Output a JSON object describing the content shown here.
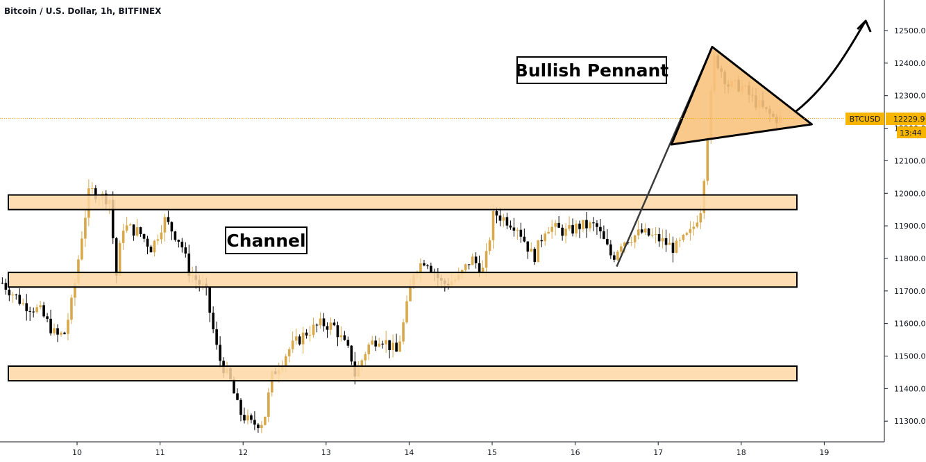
{
  "chart_data": {
    "type": "candlestick",
    "title": "Bitcoin / U.S. Dollar, 1h, BITFINEX",
    "ticker": "BTCUSD",
    "last_price": "12229.9",
    "countdown": "13:44",
    "ylim": [
      11240,
      12560
    ],
    "xlim": [
      9.1,
      19.55
    ],
    "y_ticks": [
      "11300.0",
      "11400.0",
      "11500.0",
      "11600.0",
      "11700.0",
      "11800.0",
      "11900.0",
      "12000.0",
      "12100.0",
      "12200.0",
      "12300.0",
      "12400.0",
      "12500.0"
    ],
    "y_tick_values": [
      11300,
      11400,
      11500,
      11600,
      11700,
      11800,
      11900,
      12000,
      12100,
      12200,
      12300,
      12400,
      12500
    ],
    "x_ticks": [
      "10",
      "11",
      "12",
      "13",
      "14",
      "15",
      "16",
      "17",
      "18",
      "19"
    ],
    "x_tick_values": [
      10,
      11,
      12,
      13,
      14,
      15,
      16,
      17,
      18,
      19
    ],
    "grid": false,
    "colors": {
      "bull": "#d8a84a",
      "bear": "#000000",
      "zone_fill": "#fdd7a3",
      "zone_stroke": "#000000",
      "pennant_fill": "#f8c27e",
      "price_line": "#f7a600",
      "price_tag": "#f7b500"
    },
    "zones": [
      {
        "y_low": 11950,
        "y_high": 11995
      },
      {
        "y_low": 11712,
        "y_high": 11757
      },
      {
        "y_low": 11424,
        "y_high": 11469
      }
    ],
    "annotations": {
      "channel_label": "Channel",
      "pennant_label": "Bullish Pennant"
    },
    "pennant": {
      "pole": [
        {
          "x": 16.5,
          "y": 11775
        },
        {
          "x": 17.65,
          "y": 12450
        }
      ],
      "triangle": [
        {
          "x": 17.16,
          "y": 12150
        },
        {
          "x": 17.65,
          "y": 12450
        },
        {
          "x": 18.85,
          "y": 12212
        }
      ],
      "arrow": [
        {
          "x": 18.65,
          "y": 12250
        },
        {
          "x": 19.1,
          "y": 12340
        },
        {
          "x": 19.35,
          "y": 12470
        },
        {
          "x": 19.5,
          "y": 12530
        }
      ]
    },
    "anchors": [
      {
        "x": 9.1,
        "y": 11725
      },
      {
        "x": 9.35,
        "y": 11660
      },
      {
        "x": 9.55,
        "y": 11640
      },
      {
        "x": 9.75,
        "y": 11560
      },
      {
        "x": 9.85,
        "y": 11570
      },
      {
        "x": 9.95,
        "y": 11680
      },
      {
        "x": 10.05,
        "y": 11860
      },
      {
        "x": 10.15,
        "y": 12010
      },
      {
        "x": 10.3,
        "y": 11990
      },
      {
        "x": 10.42,
        "y": 11980
      },
      {
        "x": 10.45,
        "y": 11700
      },
      {
        "x": 10.55,
        "y": 11900
      },
      {
        "x": 10.75,
        "y": 11880
      },
      {
        "x": 10.9,
        "y": 11830
      },
      {
        "x": 11.05,
        "y": 11920
      },
      {
        "x": 11.25,
        "y": 11850
      },
      {
        "x": 11.35,
        "y": 11760
      },
      {
        "x": 11.55,
        "y": 11700
      },
      {
        "x": 11.7,
        "y": 11500
      },
      {
        "x": 11.85,
        "y": 11420
      },
      {
        "x": 11.95,
        "y": 11330
      },
      {
        "x": 12.1,
        "y": 11290
      },
      {
        "x": 12.25,
        "y": 11300
      },
      {
        "x": 12.35,
        "y": 11440
      },
      {
        "x": 12.55,
        "y": 11520
      },
      {
        "x": 12.75,
        "y": 11570
      },
      {
        "x": 12.95,
        "y": 11600
      },
      {
        "x": 13.1,
        "y": 11590
      },
      {
        "x": 13.3,
        "y": 11500
      },
      {
        "x": 13.35,
        "y": 11440
      },
      {
        "x": 13.5,
        "y": 11530
      },
      {
        "x": 13.65,
        "y": 11560
      },
      {
        "x": 13.85,
        "y": 11510
      },
      {
        "x": 13.95,
        "y": 11620
      },
      {
        "x": 14.05,
        "y": 11760
      },
      {
        "x": 14.2,
        "y": 11800
      },
      {
        "x": 14.4,
        "y": 11720
      },
      {
        "x": 14.6,
        "y": 11740
      },
      {
        "x": 14.75,
        "y": 11800
      },
      {
        "x": 14.9,
        "y": 11760
      },
      {
        "x": 15.02,
        "y": 11940
      },
      {
        "x": 15.3,
        "y": 11900
      },
      {
        "x": 15.5,
        "y": 11800
      },
      {
        "x": 15.65,
        "y": 11900
      },
      {
        "x": 15.9,
        "y": 11880
      },
      {
        "x": 16.05,
        "y": 11900
      },
      {
        "x": 16.25,
        "y": 11900
      },
      {
        "x": 16.45,
        "y": 11800
      },
      {
        "x": 16.55,
        "y": 11850
      },
      {
        "x": 16.8,
        "y": 11880
      },
      {
        "x": 17.0,
        "y": 11860
      },
      {
        "x": 17.2,
        "y": 11830
      },
      {
        "x": 17.4,
        "y": 11880
      },
      {
        "x": 17.52,
        "y": 11960
      },
      {
        "x": 17.6,
        "y": 12200
      },
      {
        "x": 17.68,
        "y": 12420
      },
      {
        "x": 17.85,
        "y": 12330
      },
      {
        "x": 18.0,
        "y": 12330
      },
      {
        "x": 18.1,
        "y": 12300
      },
      {
        "x": 18.25,
        "y": 12260
      },
      {
        "x": 18.4,
        "y": 12230
      },
      {
        "x": 18.5,
        "y": 12230
      }
    ]
  }
}
